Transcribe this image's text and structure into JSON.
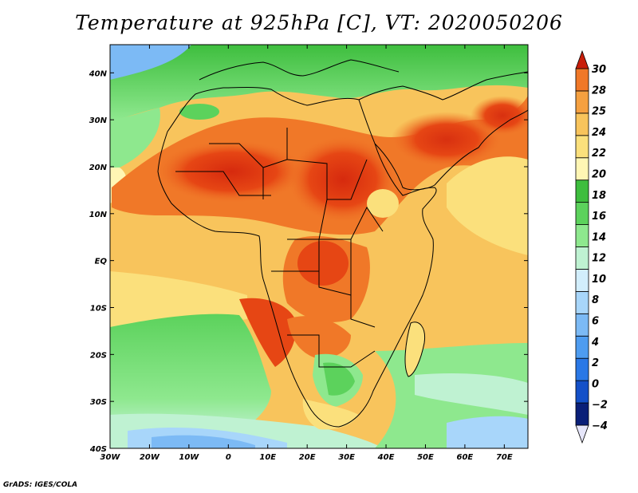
{
  "title": "Temperature at 925hPa [C], VT: 2020050206",
  "credit": "GrADS: IGES/COLA",
  "map": {
    "lon_range": [
      -30,
      76
    ],
    "lat_range": [
      -40,
      46
    ],
    "lon_ticks": [
      {
        "value": -30,
        "label": "30W"
      },
      {
        "value": -20,
        "label": "20W"
      },
      {
        "value": -10,
        "label": "10W"
      },
      {
        "value": 0,
        "label": "0"
      },
      {
        "value": 10,
        "label": "10E"
      },
      {
        "value": 20,
        "label": "20E"
      },
      {
        "value": 30,
        "label": "30E"
      },
      {
        "value": 40,
        "label": "40E"
      },
      {
        "value": 50,
        "label": "50E"
      },
      {
        "value": 60,
        "label": "60E"
      },
      {
        "value": 70,
        "label": "70E"
      }
    ],
    "lat_ticks": [
      {
        "value": 40,
        "label": "40N"
      },
      {
        "value": 30,
        "label": "30N"
      },
      {
        "value": 20,
        "label": "20N"
      },
      {
        "value": 10,
        "label": "10N"
      },
      {
        "value": 0,
        "label": "EQ"
      },
      {
        "value": -10,
        "label": "10S"
      },
      {
        "value": -20,
        "label": "20S"
      },
      {
        "value": -30,
        "label": "30S"
      },
      {
        "value": -40,
        "label": "40S"
      }
    ]
  },
  "colorbar": {
    "levels": [
      -4,
      -2,
      0,
      2,
      4,
      6,
      8,
      10,
      12,
      14,
      16,
      18,
      20,
      22,
      24,
      25,
      28,
      30
    ],
    "labels": [
      "30",
      "28",
      "25",
      "24",
      "22",
      "20",
      "18",
      "16",
      "14",
      "12",
      "10",
      "8",
      "6",
      "4",
      "2",
      "0",
      "−2",
      "−4"
    ],
    "colors": [
      "#0a1f78",
      "#1450c8",
      "#2a78e6",
      "#4e9cf0",
      "#7cbaf5",
      "#a8d6fa",
      "#d2eefc",
      "#bff2d2",
      "#8ee88e",
      "#5cd25c",
      "#3ebe3e",
      "#fff6b4",
      "#fbe07c",
      "#f8c45c",
      "#f5a040",
      "#f07828",
      "#e64614",
      "#c81e0a"
    ]
  }
}
